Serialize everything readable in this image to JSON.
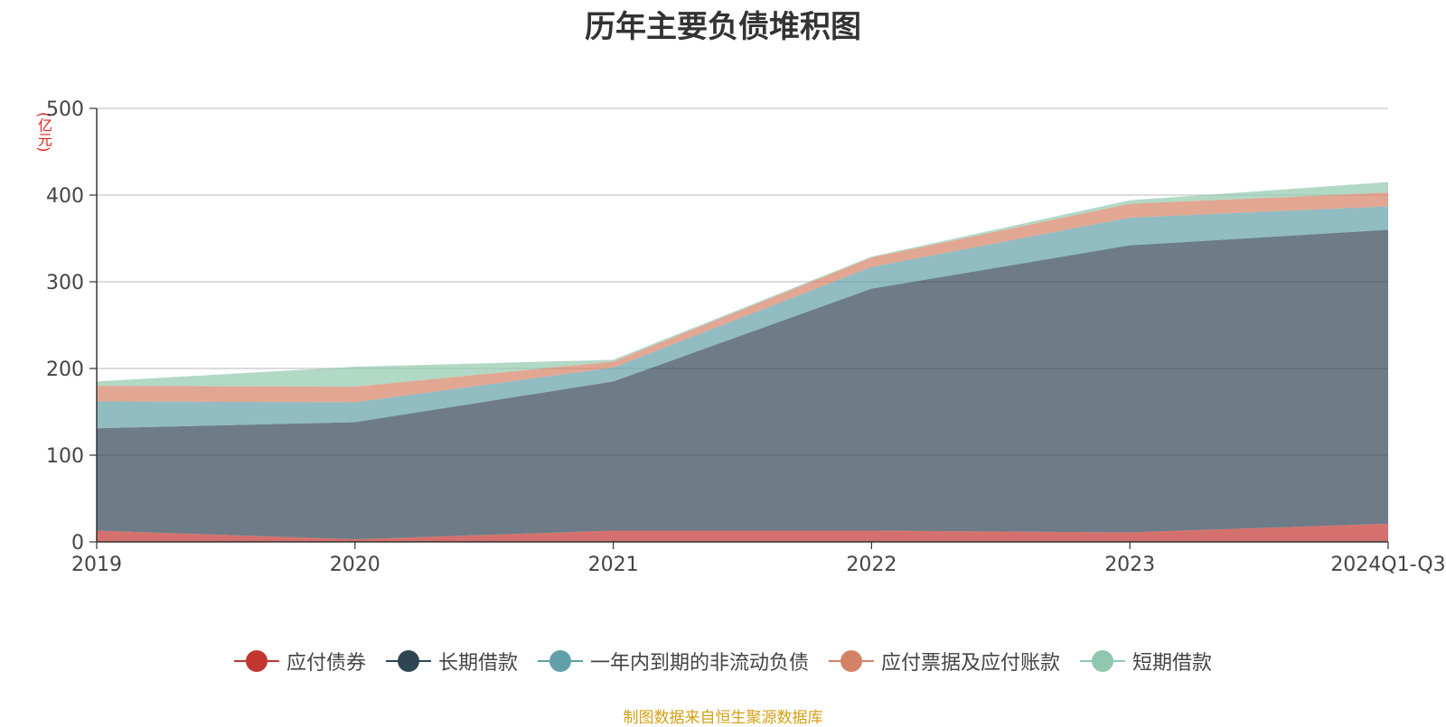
{
  "chart_data": {
    "type": "area",
    "title": "历年主要负债堆积图",
    "unit_label": "(亿元)",
    "categories": [
      "2019",
      "2020",
      "2021",
      "2022",
      "2023",
      "2024Q1-Q3"
    ],
    "ylim": [
      0,
      500
    ],
    "yticks": [
      "0",
      "100",
      "200",
      "300",
      "400",
      "500"
    ],
    "stacked": true,
    "grid": true,
    "legend_position": "bottom",
    "series": [
      {
        "name": "应付债券",
        "color": "#c23531",
        "values": [
          13,
          3,
          13,
          13,
          11,
          21
        ]
      },
      {
        "name": "长期借款",
        "color": "#2f4554",
        "values": [
          118,
          135,
          172,
          279,
          331,
          339
        ]
      },
      {
        "name": "一年内到期的非流动负债",
        "color": "#61a0a8",
        "values": [
          31,
          23,
          16,
          25,
          32,
          27
        ]
      },
      {
        "name": "应付票据及应付账款",
        "color": "#d48265",
        "values": [
          18,
          18,
          7,
          11,
          16,
          16
        ]
      },
      {
        "name": "短期借款",
        "color": "#91c7ae",
        "values": [
          5,
          23,
          2,
          1,
          4,
          12
        ]
      }
    ]
  },
  "source_note": "制图数据来自恒生聚源数据库"
}
